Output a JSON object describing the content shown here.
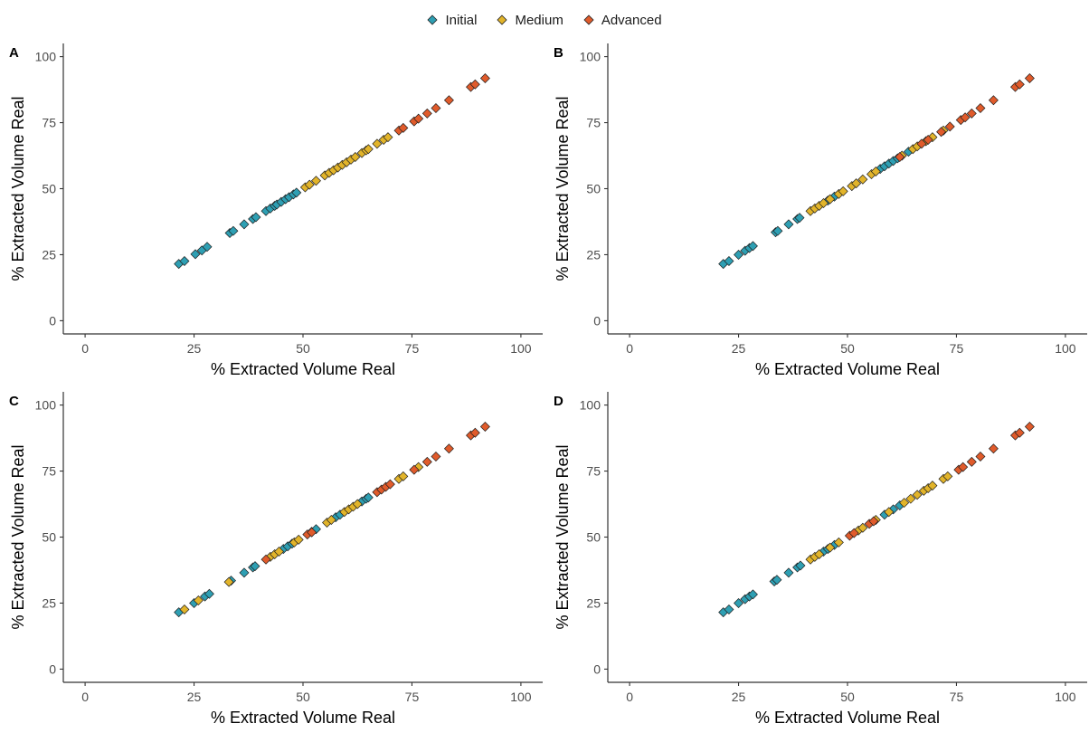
{
  "legend": {
    "items": [
      {
        "label": "Initial",
        "color": "#2e9fb3"
      },
      {
        "label": "Medium",
        "color": "#e2b42a"
      },
      {
        "label": "Advanced",
        "color": "#e05b2b"
      }
    ]
  },
  "chart_data": [
    {
      "type": "scatter",
      "panel": "A",
      "xlabel": "% Extracted Volume Real",
      "ylabel": "% Extracted Volume Real",
      "xlim": [
        -5,
        105
      ],
      "ylim": [
        -5,
        105
      ],
      "xticks": [
        0,
        25,
        50,
        75,
        100
      ],
      "yticks": [
        0,
        25,
        50,
        75,
        100
      ],
      "marker": "diamond",
      "grid": false,
      "series": [
        {
          "name": "Initial",
          "color": "#2e9fb3",
          "points": [
            [
              21.5,
              21.5
            ],
            [
              22.8,
              22.6
            ],
            [
              25.3,
              25.2
            ],
            [
              26.8,
              26.6
            ],
            [
              28.0,
              28.0
            ],
            [
              33.2,
              33.2
            ],
            [
              34.0,
              34.0
            ],
            [
              36.5,
              36.5
            ],
            [
              38.5,
              38.5
            ],
            [
              39.2,
              39.2
            ],
            [
              41.5,
              41.5
            ],
            [
              42.5,
              42.5
            ],
            [
              43.5,
              43.5
            ],
            [
              44.0,
              44.0
            ],
            [
              45.0,
              45.0
            ],
            [
              46.0,
              46.0
            ],
            [
              46.8,
              46.8
            ],
            [
              47.8,
              47.8
            ],
            [
              48.5,
              48.5
            ]
          ]
        },
        {
          "name": "Medium",
          "color": "#e2b42a",
          "points": [
            [
              50.5,
              50.5
            ],
            [
              51.5,
              51.5
            ],
            [
              53.0,
              53.0
            ],
            [
              55.0,
              55.0
            ],
            [
              56.0,
              56.0
            ],
            [
              57.0,
              57.0
            ],
            [
              58.0,
              58.0
            ],
            [
              59.0,
              59.0
            ],
            [
              60.0,
              60.0
            ],
            [
              61.0,
              61.0
            ],
            [
              62.0,
              62.0
            ],
            [
              63.5,
              63.5
            ],
            [
              64.5,
              64.5
            ],
            [
              65.0,
              65.0
            ],
            [
              67.0,
              67.0
            ],
            [
              68.5,
              68.5
            ],
            [
              69.5,
              69.5
            ]
          ]
        },
        {
          "name": "Advanced",
          "color": "#e05b2b",
          "points": [
            [
              72.0,
              72.0
            ],
            [
              73.0,
              73.0
            ],
            [
              75.5,
              75.5
            ],
            [
              76.5,
              76.5
            ],
            [
              78.5,
              78.5
            ],
            [
              80.5,
              80.5
            ],
            [
              83.5,
              83.5
            ],
            [
              88.5,
              88.5
            ],
            [
              89.5,
              89.5
            ],
            [
              91.8,
              91.8
            ]
          ]
        }
      ]
    },
    {
      "type": "scatter",
      "panel": "B",
      "xlabel": "% Extracted Volume Real",
      "ylabel": "% Extracted Volume Real",
      "xlim": [
        -5,
        105
      ],
      "ylim": [
        -5,
        105
      ],
      "xticks": [
        0,
        25,
        50,
        75,
        100
      ],
      "yticks": [
        0,
        25,
        50,
        75,
        100
      ],
      "marker": "diamond",
      "grid": false,
      "series": [
        {
          "name": "Initial",
          "color": "#2e9fb3",
          "points": [
            [
              21.5,
              21.5
            ],
            [
              22.8,
              22.6
            ],
            [
              25.0,
              25.0
            ],
            [
              26.5,
              26.5
            ],
            [
              27.5,
              27.5
            ],
            [
              28.3,
              28.3
            ],
            [
              33.5,
              33.5
            ],
            [
              34.0,
              34.0
            ],
            [
              36.5,
              36.5
            ],
            [
              38.5,
              38.5
            ],
            [
              39.0,
              39.0
            ],
            [
              45.5,
              45.5
            ],
            [
              47.0,
              47.0
            ],
            [
              57.5,
              57.5
            ],
            [
              58.5,
              58.5
            ],
            [
              59.5,
              59.5
            ],
            [
              60.5,
              60.5
            ],
            [
              61.5,
              61.5
            ],
            [
              64.0,
              64.0
            ]
          ]
        },
        {
          "name": "Medium",
          "color": "#e2b42a",
          "points": [
            [
              41.5,
              41.5
            ],
            [
              42.5,
              42.5
            ],
            [
              43.5,
              43.5
            ],
            [
              44.5,
              44.5
            ],
            [
              46.0,
              46.0
            ],
            [
              48.0,
              48.0
            ],
            [
              49.0,
              49.0
            ],
            [
              51.0,
              51.0
            ],
            [
              52.0,
              52.0
            ],
            [
              53.5,
              53.5
            ],
            [
              55.5,
              55.5
            ],
            [
              56.5,
              56.5
            ],
            [
              62.5,
              62.5
            ],
            [
              65.0,
              65.0
            ],
            [
              66.0,
              66.0
            ],
            [
              68.0,
              68.0
            ],
            [
              69.5,
              69.5
            ],
            [
              72.0,
              72.0
            ]
          ]
        },
        {
          "name": "Advanced",
          "color": "#e05b2b",
          "points": [
            [
              62.0,
              62.0
            ],
            [
              67.0,
              67.0
            ],
            [
              68.5,
              68.5
            ],
            [
              71.5,
              71.5
            ],
            [
              73.5,
              73.5
            ],
            [
              76.0,
              76.0
            ],
            [
              77.0,
              77.0
            ],
            [
              78.5,
              78.5
            ],
            [
              80.5,
              80.5
            ],
            [
              83.5,
              83.5
            ],
            [
              88.5,
              88.5
            ],
            [
              89.5,
              89.5
            ],
            [
              91.8,
              91.8
            ]
          ]
        }
      ]
    },
    {
      "type": "scatter",
      "panel": "C",
      "xlabel": "% Extracted Volume Real",
      "ylabel": "% Extracted Volume Real",
      "xlim": [
        -5,
        105
      ],
      "ylim": [
        -5,
        105
      ],
      "xticks": [
        0,
        25,
        50,
        75,
        100
      ],
      "yticks": [
        0,
        25,
        50,
        75,
        100
      ],
      "marker": "diamond",
      "grid": false,
      "series": [
        {
          "name": "Initial",
          "color": "#2e9fb3",
          "points": [
            [
              21.5,
              21.5
            ],
            [
              25.0,
              25.0
            ],
            [
              27.5,
              27.5
            ],
            [
              28.5,
              28.5
            ],
            [
              33.5,
              33.5
            ],
            [
              36.5,
              36.5
            ],
            [
              38.5,
              38.5
            ],
            [
              39.0,
              39.0
            ],
            [
              45.5,
              45.5
            ],
            [
              46.5,
              46.5
            ],
            [
              47.5,
              47.5
            ],
            [
              52.0,
              52.0
            ],
            [
              53.0,
              53.0
            ],
            [
              57.5,
              57.5
            ],
            [
              58.5,
              58.5
            ],
            [
              63.5,
              63.5
            ],
            [
              64.5,
              64.5
            ],
            [
              65.0,
              65.0
            ]
          ]
        },
        {
          "name": "Medium",
          "color": "#e2b42a",
          "points": [
            [
              22.8,
              22.6
            ],
            [
              26.0,
              26.0
            ],
            [
              33.0,
              33.0
            ],
            [
              42.5,
              42.5
            ],
            [
              43.5,
              43.5
            ],
            [
              44.5,
              44.5
            ],
            [
              48.0,
              48.0
            ],
            [
              49.0,
              49.0
            ],
            [
              55.5,
              55.5
            ],
            [
              56.5,
              56.5
            ],
            [
              59.5,
              59.5
            ],
            [
              60.5,
              60.5
            ],
            [
              61.5,
              61.5
            ],
            [
              62.5,
              62.5
            ],
            [
              72.0,
              72.0
            ],
            [
              73.0,
              73.0
            ],
            [
              76.5,
              76.5
            ]
          ]
        },
        {
          "name": "Advanced",
          "color": "#e05b2b",
          "points": [
            [
              41.5,
              41.5
            ],
            [
              51.0,
              51.0
            ],
            [
              52.0,
              51.8
            ],
            [
              67.0,
              67.0
            ],
            [
              68.0,
              68.0
            ],
            [
              69.0,
              69.0
            ],
            [
              70.0,
              70.0
            ],
            [
              75.5,
              75.5
            ],
            [
              78.5,
              78.5
            ],
            [
              80.5,
              80.5
            ],
            [
              83.5,
              83.5
            ],
            [
              88.5,
              88.5
            ],
            [
              89.5,
              89.5
            ],
            [
              91.8,
              91.8
            ]
          ]
        }
      ]
    },
    {
      "type": "scatter",
      "panel": "D",
      "xlabel": "% Extracted Volume Real",
      "ylabel": "% Extracted Volume Real",
      "xlim": [
        -5,
        105
      ],
      "ylim": [
        -5,
        105
      ],
      "xticks": [
        0,
        25,
        50,
        75,
        100
      ],
      "yticks": [
        0,
        25,
        50,
        75,
        100
      ],
      "marker": "diamond",
      "grid": false,
      "series": [
        {
          "name": "Initial",
          "color": "#2e9fb3",
          "points": [
            [
              21.5,
              21.5
            ],
            [
              22.8,
              22.6
            ],
            [
              25.0,
              25.0
            ],
            [
              26.5,
              26.5
            ],
            [
              27.5,
              27.5
            ],
            [
              28.3,
              28.3
            ],
            [
              33.2,
              33.2
            ],
            [
              33.8,
              33.8
            ],
            [
              36.5,
              36.5
            ],
            [
              38.5,
              38.5
            ],
            [
              39.2,
              39.2
            ],
            [
              44.5,
              44.5
            ],
            [
              45.5,
              45.5
            ],
            [
              47.0,
              47.0
            ],
            [
              58.5,
              58.5
            ],
            [
              60.5,
              60.5
            ],
            [
              62.0,
              62.0
            ]
          ]
        },
        {
          "name": "Medium",
          "color": "#e2b42a",
          "points": [
            [
              41.5,
              41.5
            ],
            [
              42.5,
              42.5
            ],
            [
              43.5,
              43.5
            ],
            [
              46.0,
              46.0
            ],
            [
              48.0,
              48.0
            ],
            [
              52.5,
              52.5
            ],
            [
              53.5,
              53.5
            ],
            [
              56.5,
              56.5
            ],
            [
              59.5,
              59.5
            ],
            [
              63.0,
              63.0
            ],
            [
              64.5,
              64.5
            ],
            [
              66.0,
              66.0
            ],
            [
              67.5,
              67.5
            ],
            [
              68.5,
              68.5
            ],
            [
              69.5,
              69.5
            ],
            [
              72.0,
              72.0
            ],
            [
              73.0,
              73.0
            ]
          ]
        },
        {
          "name": "Advanced",
          "color": "#e05b2b",
          "points": [
            [
              50.5,
              50.5
            ],
            [
              51.5,
              51.5
            ],
            [
              55.0,
              55.0
            ],
            [
              56.0,
              56.0
            ],
            [
              75.5,
              75.5
            ],
            [
              76.5,
              76.5
            ],
            [
              78.5,
              78.5
            ],
            [
              80.5,
              80.5
            ],
            [
              83.5,
              83.5
            ],
            [
              88.5,
              88.5
            ],
            [
              89.5,
              89.5
            ],
            [
              91.8,
              91.8
            ]
          ]
        }
      ]
    }
  ]
}
